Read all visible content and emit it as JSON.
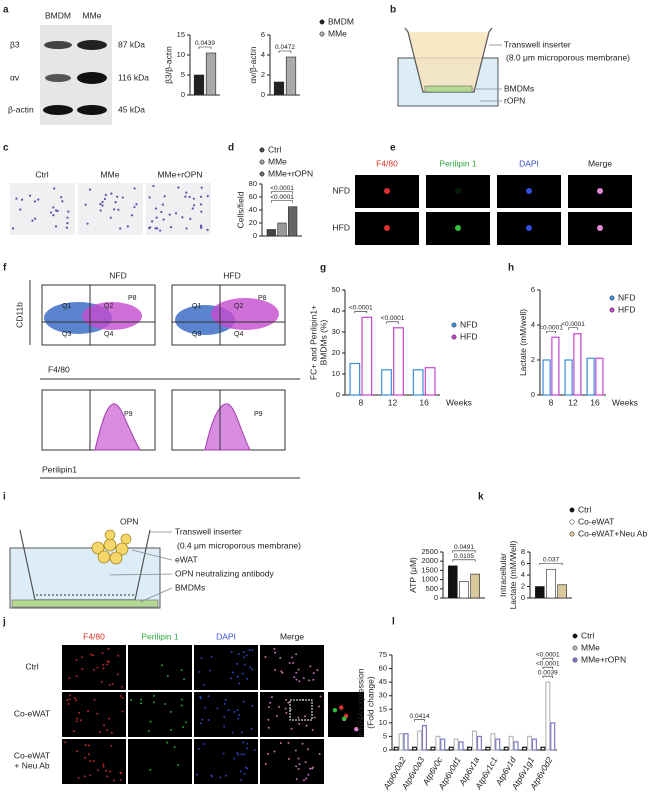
{
  "panel_labels": [
    "a",
    "b",
    "c",
    "d",
    "e",
    "f",
    "g",
    "h",
    "i",
    "j",
    "k",
    "l"
  ],
  "blot": {
    "columns": [
      "BMDM",
      "MMe"
    ],
    "rows": [
      {
        "label": "β3",
        "size": "87 kDa"
      },
      {
        "label": "αv",
        "size": "116 kDa"
      },
      {
        "label": "β-actin",
        "size": "45 kDa"
      }
    ]
  },
  "transwell_b": {
    "labels": [
      "Transwell inserter",
      "(8.0 μm microporous membrane)",
      "BMDMs",
      "rOPN"
    ]
  },
  "migration_c": {
    "columns": [
      "Ctrl",
      "MMe",
      "MMe+rOPN"
    ]
  },
  "staining_e": {
    "columns": [
      "F4/80",
      "Perilipin 1",
      "DAPI",
      "Merge"
    ],
    "rows": [
      "NFD",
      "HFD"
    ]
  },
  "flow_f": {
    "groups": [
      "NFD",
      "HFD"
    ],
    "y_label": "CD11b",
    "x_label": "F4/80",
    "quadrants": [
      "Q1",
      "Q2",
      "Q3",
      "Q4"
    ],
    "gate": "P8",
    "histogram_x_label": "Perilipin1",
    "histogram_gate": "P9"
  },
  "transwell_i": {
    "top_label": "OPN",
    "labels": [
      "Transwell inserter",
      "(0.4  μm microporous membrane)",
      "eWAT",
      "OPN neutralizing antibody",
      "BMDMs"
    ]
  },
  "staining_j": {
    "columns": [
      "F4/80",
      "Perilipin 1",
      "DAPI",
      "Merge"
    ],
    "rows": [
      [
        "Ctrl"
      ],
      [
        "Co-eWAT"
      ],
      [
        "Co-eWAT",
        "+ Neu Ab"
      ]
    ]
  },
  "chart_data": [
    {
      "type": "bar",
      "ylabel": "β3/β-actin",
      "categories": [
        null
      ],
      "series": [
        {
          "name": "BMDM",
          "color": "#222222",
          "values": [
            5
          ]
        },
        {
          "name": "MMe",
          "color": "#aaaaaa",
          "values": [
            10.5
          ]
        }
      ],
      "ylim": [
        0,
        15
      ],
      "yticks": [
        0,
        5,
        10,
        15
      ],
      "legend": "upper right",
      "annotations": [
        {
          "text": "0.0439",
          "category": null
        }
      ]
    },
    {
      "type": "bar",
      "ylabel": "αv/β-actin",
      "categories": [
        null
      ],
      "series": [
        {
          "color": "#222222",
          "values": [
            1.3
          ]
        },
        {
          "color": "#aaaaaa",
          "values": [
            3.8
          ]
        }
      ],
      "ylim": [
        0,
        6
      ],
      "yticks": [
        0,
        2,
        4,
        6
      ],
      "annotations": [
        {
          "text": "0.0472",
          "category": null
        }
      ]
    },
    {
      "type": "bar",
      "ylabel": "Cells/field",
      "categories": [
        null
      ],
      "series": [
        {
          "name": "Ctrl",
          "color": "#444444",
          "values": [
            10
          ]
        },
        {
          "name": "MMe",
          "color": "#999999",
          "values": [
            20
          ]
        },
        {
          "name": "MMe+rOPN",
          "color": "#666666",
          "values": [
            45
          ]
        }
      ],
      "ylim": [
        0,
        80
      ],
      "yticks": [
        0,
        20,
        40,
        60,
        80
      ],
      "legend": "upper right",
      "annotations": [
        {
          "text": "<0.0001",
          "category": null
        },
        {
          "text": "<0.0001",
          "category": null
        }
      ]
    },
    {
      "type": "bar",
      "bar_style": "outline",
      "ylabel": [
        "FC+ and Perilipin1+",
        "BMDMs (%)"
      ],
      "xlabel": "Weeks",
      "categories": [
        "8",
        "12",
        "16"
      ],
      "series": [
        {
          "name": "NFD",
          "color": "#3a8fd8",
          "values": [
            15,
            12,
            12
          ]
        },
        {
          "name": "HFD",
          "color": "#c644d0",
          "values": [
            37,
            32,
            13
          ]
        }
      ],
      "ylim": [
        0,
        50
      ],
      "yticks": [
        0,
        10,
        20,
        30,
        40,
        50
      ],
      "legend": "right",
      "annotations": [
        {
          "text": "<0.0001",
          "category": "8"
        },
        {
          "text": "<0.0001",
          "category": "12"
        }
      ]
    },
    {
      "type": "bar",
      "bar_style": "outline",
      "ylabel": "Lactate (mM/well)",
      "xlabel": "Weeks",
      "categories": [
        "8",
        "12",
        "16"
      ],
      "series": [
        {
          "name": "NFD",
          "color": "#3a8fd8",
          "values": [
            2.0,
            2.0,
            2.1
          ]
        },
        {
          "name": "HFD",
          "color": "#c644d0",
          "values": [
            3.3,
            3.5,
            2.1
          ]
        }
      ],
      "ylim": [
        0,
        6
      ],
      "yticks": [
        0,
        2,
        4,
        6
      ],
      "legend": "upper right",
      "annotations": [
        {
          "text": "<0.0001",
          "category": "8"
        },
        {
          "text": "<0.0001",
          "category": "12"
        }
      ]
    },
    {
      "type": "bar",
      "ylabel": "ATP (μM)",
      "categories": [
        null
      ],
      "series": [
        {
          "color": "#111111",
          "values": [
            1750
          ]
        },
        {
          "color": "#ffffff",
          "values": [
            900
          ]
        },
        {
          "color": "#d8c89c",
          "values": [
            1300
          ]
        }
      ],
      "ylim": [
        0,
        2500
      ],
      "yticks": [
        0,
        500,
        1000,
        1500,
        2000,
        2500
      ],
      "annotations": [
        {
          "text": "0.0105",
          "category": null
        },
        {
          "text": "0.0491",
          "category": null
        }
      ]
    },
    {
      "type": "bar",
      "ylabel": [
        "Intracellular",
        "Lactate (mM/Well)"
      ],
      "categories": [
        null
      ],
      "series": [
        {
          "name": "Ctrl",
          "color": "#111111",
          "values": [
            2
          ]
        },
        {
          "name": "Co-eWAT",
          "color": "#ffffff",
          "values": [
            5
          ]
        },
        {
          "name": "Co-eWAT+Neu Ab",
          "color": "#d8c89c",
          "values": [
            2.3
          ]
        }
      ],
      "ylim": [
        0,
        8
      ],
      "yticks": [
        0,
        2,
        4,
        6,
        8
      ],
      "legend": "upper right",
      "annotations": [
        {
          "text": "0.037",
          "category": null
        }
      ]
    },
    {
      "type": "bar",
      "bar_style": "outline",
      "ylabel": [
        "mRNA expression",
        "(Fold change)"
      ],
      "xtick_rotation": -60,
      "categories": [
        "Atp6v0a2",
        "Atp6v0a3",
        "Atp6v0c",
        "Atp6v0d1",
        "Atp6v1a",
        "Atp6v1c1",
        "Atp6v1d",
        "Atp6v1g1",
        "Atp6v0d2"
      ],
      "series": [
        {
          "name": "Ctrl",
          "color": "#111111",
          "values": [
            1,
            1,
            1,
            1,
            1,
            1,
            1,
            1,
            1
          ]
        },
        {
          "name": "MMe",
          "color": "#b8b8b8",
          "values": [
            6,
            7,
            5,
            4,
            7,
            6,
            5,
            5,
            45
          ]
        },
        {
          "name": "MMe+rOPN",
          "color": "#7a7ac8",
          "values": [
            6,
            9,
            4,
            3,
            5,
            4,
            3,
            4,
            10
          ]
        }
      ],
      "ylim": [
        0,
        75
      ],
      "ybreak": 15,
      "yticks": [
        0,
        5,
        10,
        15,
        30,
        45,
        60,
        75
      ],
      "legend": "upper right",
      "annotations": [
        {
          "text": "0.0414",
          "category": "Atp6v0a3"
        },
        {
          "text": "0.0039",
          "category": "Atp6v0d2"
        },
        {
          "text": "<0.0001",
          "category": "Atp6v0d2"
        },
        {
          "text": "<0.0001",
          "category": "Atp6v0d2"
        }
      ]
    }
  ]
}
